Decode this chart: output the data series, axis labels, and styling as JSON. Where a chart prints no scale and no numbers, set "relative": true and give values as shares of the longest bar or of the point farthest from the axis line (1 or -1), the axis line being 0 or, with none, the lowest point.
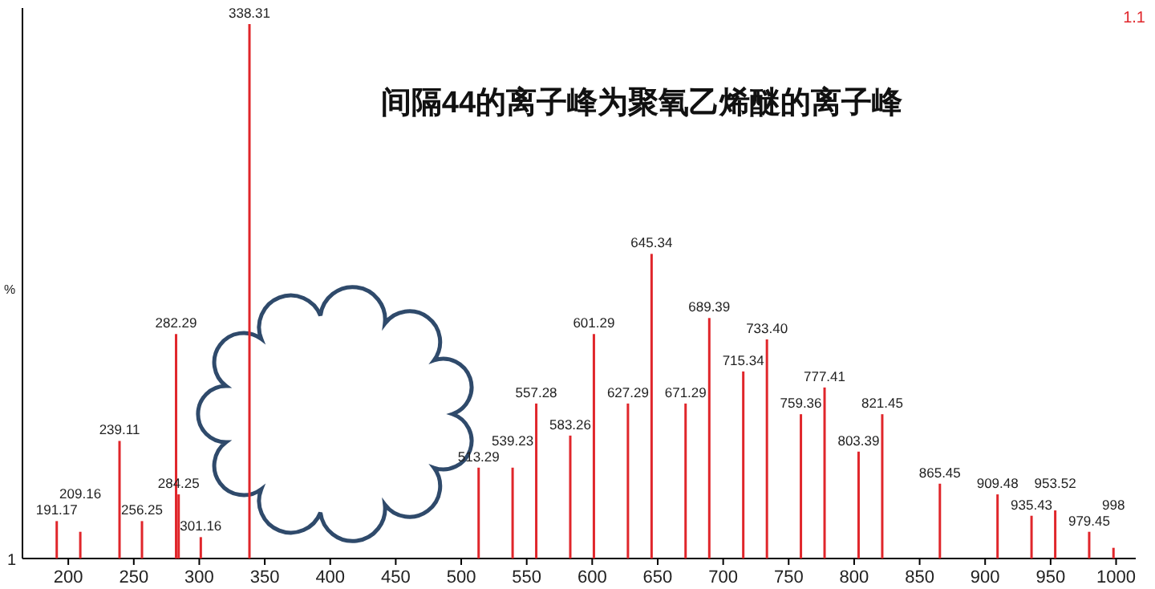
{
  "chart_data": {
    "type": "bar",
    "title": "间隔44的离子峰为聚氧乙烯醚的离子峰",
    "ylabel": "%",
    "relative": true,
    "x": [
      191.17,
      209.16,
      239.11,
      256.25,
      282.29,
      284.25,
      301.16,
      338.31,
      513.29,
      539.23,
      557.28,
      583.26,
      601.29,
      627.29,
      645.34,
      671.29,
      689.39,
      715.34,
      733.4,
      759.36,
      777.41,
      803.39,
      821.45,
      865.45,
      909.48,
      935.43,
      953.52,
      979.45,
      998
    ],
    "values": [
      0.07,
      0.05,
      0.22,
      0.07,
      0.42,
      0.12,
      0.04,
      1.0,
      0.17,
      0.17,
      0.29,
      0.23,
      0.42,
      0.29,
      0.57,
      0.29,
      0.45,
      0.35,
      0.41,
      0.27,
      0.32,
      0.2,
      0.27,
      0.14,
      0.12,
      0.08,
      0.09,
      0.05,
      0.02
    ],
    "color": "#e0262b",
    "xlim": [
      165,
      1015
    ],
    "xticks": [
      200,
      250,
      300,
      350,
      400,
      450,
      500,
      550,
      600,
      650,
      700,
      750,
      800,
      850,
      900,
      950,
      1000
    ],
    "annotations": [
      "1.1",
      "1",
      {
        "text": "191.17",
        "x": 191.17,
        "y": 0.07
      },
      {
        "text": "209.16",
        "x": 209.16,
        "y": 0.05
      },
      {
        "text": "239.11",
        "x": 239.11,
        "y": 0.22
      },
      {
        "text": "256.25",
        "x": 256.25,
        "y": 0.07
      },
      {
        "text": "282.29",
        "x": 282.29,
        "y": 0.42
      },
      {
        "text": "284.25",
        "x": 284.25,
        "y": 0.12
      },
      {
        "text": "301.16",
        "x": 301.16,
        "y": 0.04
      },
      {
        "text": "338.31",
        "x": 338.31,
        "y": 1.0
      },
      {
        "text": "513.29",
        "x": 513.29,
        "y": 0.17
      },
      {
        "text": "539.23",
        "x": 539.23,
        "y": 0.17
      },
      {
        "text": "557.28",
        "x": 557.28,
        "y": 0.29
      },
      {
        "text": "583.26",
        "x": 583.26,
        "y": 0.23
      },
      {
        "text": "601.29",
        "x": 601.29,
        "y": 0.42
      },
      {
        "text": "627.29",
        "x": 627.29,
        "y": 0.29
      },
      {
        "text": "645.34",
        "x": 645.34,
        "y": 0.57
      },
      {
        "text": "671.29",
        "x": 671.29,
        "y": 0.29
      },
      {
        "text": "689.39",
        "x": 689.39,
        "y": 0.45
      },
      {
        "text": "715.34",
        "x": 715.34,
        "y": 0.35
      },
      {
        "text": "733.40",
        "x": 733.4,
        "y": 0.41
      },
      {
        "text": "759.36",
        "x": 759.36,
        "y": 0.27
      },
      {
        "text": "777.41",
        "x": 777.41,
        "y": 0.32
      },
      {
        "text": "803.39",
        "x": 803.39,
        "y": 0.2
      },
      {
        "text": "821.45",
        "x": 821.45,
        "y": 0.27
      },
      {
        "text": "865.45",
        "x": 865.45,
        "y": 0.14
      },
      {
        "text": "909.48",
        "x": 909.48,
        "y": 0.12
      },
      {
        "text": "935.43",
        "x": 935.43,
        "y": 0.08
      },
      {
        "text": "953.52",
        "x": 953.52,
        "y": 0.09
      },
      {
        "text": "979.45",
        "x": 979.45,
        "y": 0.05
      },
      {
        "text": "998",
        "x": 998,
        "y": 0.02
      }
    ]
  }
}
